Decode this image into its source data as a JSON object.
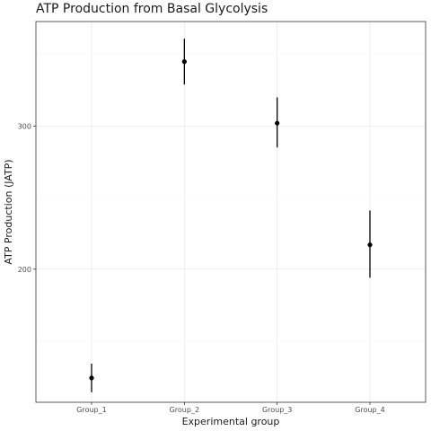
{
  "chart_data": {
    "type": "scatter",
    "title": "ATP Production from Basal Glycolysis",
    "xlabel": "Experimental group",
    "ylabel": "ATP Production (JATP)",
    "categories": [
      "Group_1",
      "Group_2",
      "Group_3",
      "Group_4"
    ],
    "values": [
      124,
      345,
      302,
      217
    ],
    "error_low": [
      114,
      329,
      285,
      194
    ],
    "error_high": [
      134,
      361,
      320,
      241
    ],
    "ylim": [
      107,
      373
    ],
    "yticks": [
      200,
      300
    ],
    "grid": true,
    "legend": "none",
    "point_color": "#000000",
    "errorbar_color": "#000000"
  }
}
